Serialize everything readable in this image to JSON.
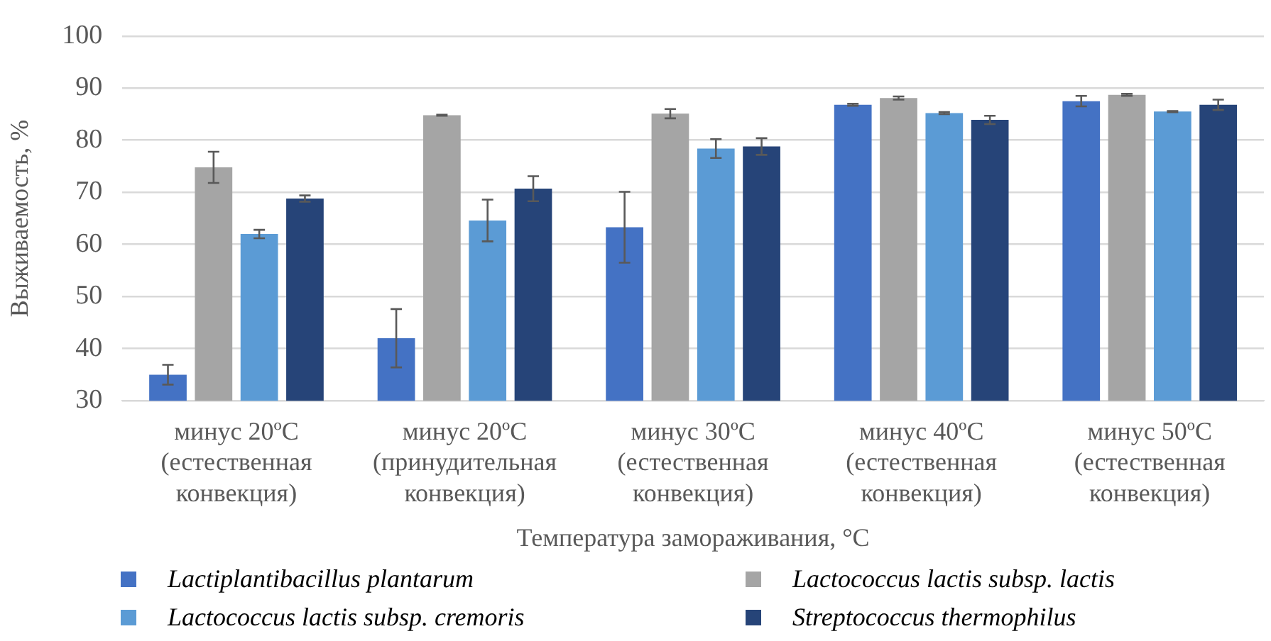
{
  "chart_data": {
    "type": "bar",
    "xlabel": "Температура замораживания, °C",
    "ylabel": "Выживаемость, %",
    "categories": [
      "минус 20ºC (естественная конвекция)",
      "минус 20ºC (принудительная конвекция)",
      "минус 30ºC (естественная конвекция)",
      "минус 40ºC (естественная конвекция)",
      "минус 50ºC (естественная конвекция)"
    ],
    "series": [
      {
        "name": "Lactiplantibacillus plantarum",
        "color": "#4472c4",
        "values": [
          35.0,
          42.0,
          63.3,
          86.8,
          87.5
        ],
        "errors": [
          1.9,
          5.6,
          6.8,
          0.2,
          1.0
        ]
      },
      {
        "name": "Lactococcus lactis subsp. lactis",
        "color": "#a5a5a5",
        "values": [
          74.8,
          84.8,
          85.1,
          88.1,
          88.7
        ],
        "errors": [
          3.0,
          0.1,
          0.9,
          0.3,
          0.2
        ]
      },
      {
        "name": "Lactococcus lactis subsp. cremoris",
        "color": "#5b9bd5",
        "values": [
          62.0,
          64.6,
          78.4,
          85.2,
          85.5
        ],
        "errors": [
          0.8,
          4.0,
          1.8,
          0.2,
          0.1
        ]
      },
      {
        "name": "Streptococcus thermophilus",
        "color": "#264478",
        "values": [
          68.8,
          70.7,
          78.8,
          83.9,
          86.8
        ],
        "errors": [
          0.6,
          2.4,
          1.6,
          0.8,
          1.0
        ]
      }
    ],
    "ylim": [
      30,
      100
    ],
    "yticks": [
      30,
      40,
      50,
      60,
      70,
      80,
      90,
      100
    ],
    "grid": "y",
    "legend": "bottom"
  }
}
